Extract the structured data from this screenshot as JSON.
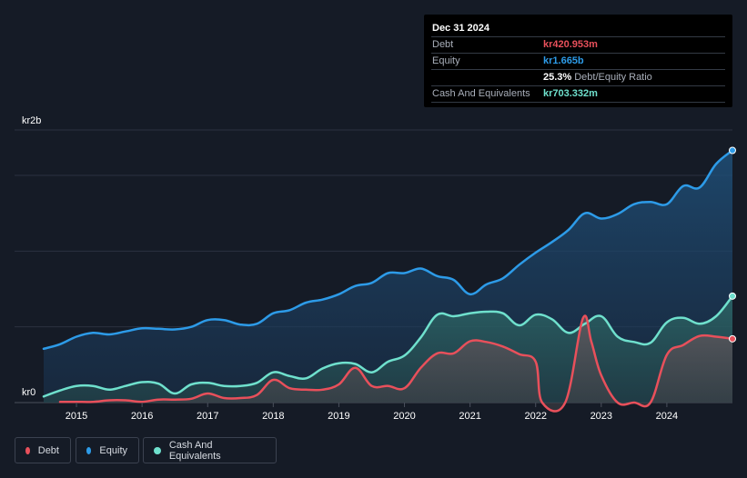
{
  "tooltip": {
    "date": "Dec 31 2024",
    "rows": [
      {
        "label": "Debt",
        "value": "kr420.953m",
        "color": "#e8505b"
      },
      {
        "label": "Equity",
        "value": "kr1.665b",
        "color": "#2d9be8"
      },
      {
        "label": "",
        "value": "25.3%",
        "suffix": "Debt/Equity Ratio",
        "color": "#ffffff"
      },
      {
        "label": "Cash And Equivalents",
        "value": "kr703.332m",
        "color": "#6fe0cd"
      }
    ]
  },
  "legend": [
    {
      "label": "Debt",
      "color": "#e8505b"
    },
    {
      "label": "Equity",
      "color": "#2d9be8"
    },
    {
      "label": "Cash And Equivalents",
      "color": "#6fe0cd"
    }
  ],
  "chart_data": {
    "type": "area",
    "ylabel_top": "kr2b",
    "ylabel_bottom": "kr0",
    "ylim": [
      0,
      1800
    ],
    "y_unit": "kr millions",
    "xlim": [
      2014.5,
      2025.0
    ],
    "x_ticks": [
      "2015",
      "2016",
      "2017",
      "2018",
      "2019",
      "2020",
      "2021",
      "2022",
      "2023",
      "2024"
    ],
    "grid": true,
    "series": [
      {
        "name": "Equity",
        "color": "#2d9be8",
        "points": [
          [
            2014.5,
            355
          ],
          [
            2014.75,
            385
          ],
          [
            2015.0,
            435
          ],
          [
            2015.25,
            460
          ],
          [
            2015.5,
            450
          ],
          [
            2015.75,
            470
          ],
          [
            2016.0,
            490
          ],
          [
            2016.25,
            487
          ],
          [
            2016.5,
            483
          ],
          [
            2016.75,
            500
          ],
          [
            2017.0,
            545
          ],
          [
            2017.25,
            545
          ],
          [
            2017.5,
            515
          ],
          [
            2017.75,
            520
          ],
          [
            2018.0,
            590
          ],
          [
            2018.25,
            610
          ],
          [
            2018.5,
            660
          ],
          [
            2018.75,
            680
          ],
          [
            2019.0,
            715
          ],
          [
            2019.25,
            770
          ],
          [
            2019.5,
            790
          ],
          [
            2019.75,
            855
          ],
          [
            2020.0,
            855
          ],
          [
            2020.25,
            885
          ],
          [
            2020.5,
            835
          ],
          [
            2020.75,
            810
          ],
          [
            2021.0,
            715
          ],
          [
            2021.25,
            780
          ],
          [
            2021.5,
            820
          ],
          [
            2021.75,
            910
          ],
          [
            2022.0,
            990
          ],
          [
            2022.25,
            1060
          ],
          [
            2022.5,
            1140
          ],
          [
            2022.75,
            1250
          ],
          [
            2023.0,
            1215
          ],
          [
            2023.25,
            1245
          ],
          [
            2023.5,
            1310
          ],
          [
            2023.75,
            1325
          ],
          [
            2024.0,
            1310
          ],
          [
            2024.25,
            1430
          ],
          [
            2024.5,
            1420
          ],
          [
            2024.75,
            1575
          ],
          [
            2025.0,
            1665
          ]
        ]
      },
      {
        "name": "Cash And Equivalents",
        "color": "#6fe0cd",
        "points": [
          [
            2014.5,
            40
          ],
          [
            2014.75,
            80
          ],
          [
            2015.0,
            110
          ],
          [
            2015.25,
            110
          ],
          [
            2015.5,
            85
          ],
          [
            2015.75,
            110
          ],
          [
            2016.0,
            135
          ],
          [
            2016.25,
            125
          ],
          [
            2016.5,
            60
          ],
          [
            2016.75,
            120
          ],
          [
            2017.0,
            130
          ],
          [
            2017.25,
            110
          ],
          [
            2017.5,
            110
          ],
          [
            2017.75,
            130
          ],
          [
            2018.0,
            200
          ],
          [
            2018.25,
            175
          ],
          [
            2018.5,
            160
          ],
          [
            2018.75,
            225
          ],
          [
            2019.0,
            260
          ],
          [
            2019.25,
            255
          ],
          [
            2019.5,
            200
          ],
          [
            2019.75,
            270
          ],
          [
            2020.0,
            310
          ],
          [
            2020.25,
            430
          ],
          [
            2020.5,
            580
          ],
          [
            2020.75,
            570
          ],
          [
            2021.0,
            590
          ],
          [
            2021.25,
            600
          ],
          [
            2021.5,
            590
          ],
          [
            2021.75,
            510
          ],
          [
            2022.0,
            580
          ],
          [
            2022.25,
            550
          ],
          [
            2022.5,
            460
          ],
          [
            2022.75,
            520
          ],
          [
            2023.0,
            570
          ],
          [
            2023.25,
            435
          ],
          [
            2023.5,
            400
          ],
          [
            2023.75,
            395
          ],
          [
            2024.0,
            530
          ],
          [
            2024.25,
            560
          ],
          [
            2024.5,
            520
          ],
          [
            2024.75,
            570
          ],
          [
            2025.0,
            703
          ]
        ]
      },
      {
        "name": "Debt",
        "color": "#e8505b",
        "points": [
          [
            2014.75,
            5
          ],
          [
            2015.0,
            5
          ],
          [
            2015.25,
            5
          ],
          [
            2015.5,
            15
          ],
          [
            2015.75,
            15
          ],
          [
            2016.0,
            5
          ],
          [
            2016.25,
            20
          ],
          [
            2016.5,
            20
          ],
          [
            2016.75,
            25
          ],
          [
            2017.0,
            60
          ],
          [
            2017.25,
            30
          ],
          [
            2017.5,
            30
          ],
          [
            2017.75,
            50
          ],
          [
            2018.0,
            150
          ],
          [
            2018.25,
            95
          ],
          [
            2018.5,
            85
          ],
          [
            2018.75,
            85
          ],
          [
            2019.0,
            120
          ],
          [
            2019.25,
            230
          ],
          [
            2019.5,
            110
          ],
          [
            2019.75,
            110
          ],
          [
            2020.0,
            95
          ],
          [
            2020.25,
            230
          ],
          [
            2020.5,
            325
          ],
          [
            2020.75,
            325
          ],
          [
            2021.0,
            405
          ],
          [
            2021.25,
            400
          ],
          [
            2021.5,
            370
          ],
          [
            2021.75,
            320
          ],
          [
            2022.0,
            270
          ],
          [
            2022.1,
            0
          ],
          [
            2022.45,
            0
          ],
          [
            2022.72,
            555
          ],
          [
            2022.85,
            400
          ],
          [
            2023.0,
            180
          ],
          [
            2023.25,
            0
          ],
          [
            2023.5,
            0
          ],
          [
            2023.75,
            0
          ],
          [
            2024.0,
            315
          ],
          [
            2024.25,
            380
          ],
          [
            2024.5,
            440
          ],
          [
            2024.75,
            435
          ],
          [
            2025.0,
            421
          ]
        ]
      }
    ]
  }
}
